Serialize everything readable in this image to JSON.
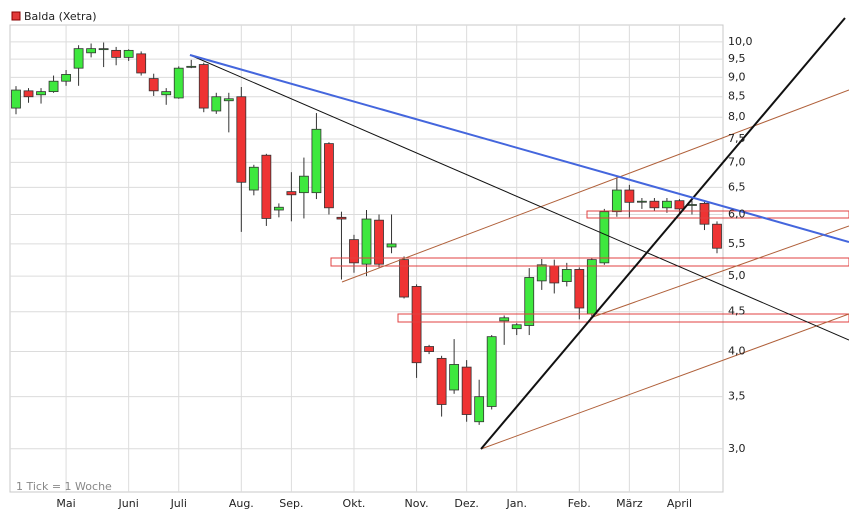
{
  "chart_data": {
    "type": "candlestick",
    "title": "Balda (Xetra)",
    "footnote": "1 Tick = 1 Woche",
    "log_scale": true,
    "grid": true,
    "categories": [
      null,
      null,
      null,
      null,
      "Mai",
      null,
      null,
      null,
      null,
      "Juni",
      null,
      null,
      null,
      "Juli",
      null,
      null,
      null,
      null,
      "Aug.",
      null,
      null,
      null,
      "Sep.",
      null,
      null,
      null,
      null,
      "Okt.",
      null,
      null,
      null,
      null,
      "Nov.",
      null,
      null,
      null,
      "Dez.",
      null,
      null,
      null,
      "Jan.",
      null,
      null,
      null,
      null,
      "Feb.",
      null,
      null,
      null,
      "März",
      null,
      null,
      null,
      "April",
      null,
      null,
      null
    ],
    "series": [
      {
        "name": "Balda (Xetra)",
        "color": "#e23a3a",
        "up_color": "#3ee83e",
        "down_color": "#ee3333",
        "open": [
          8.22,
          8.65,
          8.55,
          8.63,
          8.9,
          9.25,
          9.68,
          9.8,
          9.75,
          9.55,
          9.65,
          8.97,
          8.55,
          8.47,
          9.3,
          9.35,
          8.15,
          8.4,
          8.5,
          6.45,
          7.15,
          6.08,
          6.42,
          6.4,
          6.4,
          7.4,
          5.95,
          5.57,
          5.18,
          5.9,
          5.45,
          5.25,
          4.85,
          4.06,
          3.92,
          3.57,
          3.82,
          3.25,
          3.4,
          4.38,
          4.28,
          4.32,
          4.93,
          5.15,
          4.92,
          5.1,
          4.47,
          5.2,
          6.05,
          6.45,
          6.24,
          6.24,
          6.12,
          6.25,
          6.18,
          6.2,
          5.83
        ],
        "high": [
          8.77,
          8.72,
          8.72,
          9.05,
          9.2,
          9.9,
          9.95,
          9.98,
          9.85,
          9.78,
          9.72,
          9.1,
          8.72,
          9.3,
          9.48,
          9.4,
          8.6,
          8.6,
          8.75,
          6.95,
          7.18,
          6.2,
          6.8,
          7.1,
          8.1,
          7.43,
          6.05,
          5.65,
          6.08,
          6.0,
          6.0,
          5.3,
          4.88,
          4.08,
          3.95,
          4.15,
          3.9,
          3.68,
          4.2,
          4.45,
          4.35,
          5.12,
          5.26,
          5.25,
          5.2,
          5.13,
          5.28,
          6.1,
          6.7,
          6.55,
          6.3,
          6.3,
          6.3,
          6.28,
          6.25,
          6.23,
          5.88
        ],
        "low": [
          8.07,
          8.35,
          8.33,
          8.6,
          8.78,
          8.78,
          9.55,
          9.28,
          9.33,
          9.45,
          9.05,
          8.52,
          8.3,
          8.45,
          9.25,
          8.12,
          8.08,
          7.65,
          5.7,
          6.35,
          5.8,
          5.95,
          5.88,
          5.93,
          6.28,
          6.0,
          4.95,
          5.05,
          5.0,
          5.13,
          5.35,
          4.68,
          3.7,
          3.97,
          3.3,
          3.53,
          3.25,
          3.22,
          3.37,
          4.08,
          4.2,
          4.2,
          4.8,
          4.75,
          4.85,
          4.4,
          4.43,
          5.17,
          5.96,
          5.95,
          6.1,
          6.07,
          6.03,
          6.03,
          6.0,
          5.73,
          5.35
        ],
        "close": [
          8.67,
          8.5,
          8.63,
          8.9,
          9.08,
          9.8,
          9.8,
          9.8,
          9.55,
          9.75,
          9.12,
          8.65,
          8.63,
          9.25,
          9.3,
          8.22,
          8.5,
          8.45,
          6.6,
          6.9,
          5.93,
          6.13,
          6.36,
          6.72,
          7.72,
          6.12,
          5.92,
          5.2,
          5.92,
          5.18,
          5.5,
          4.7,
          3.87,
          4.0,
          3.42,
          3.85,
          3.32,
          3.5,
          4.18,
          4.42,
          4.33,
          4.98,
          5.17,
          4.9,
          5.1,
          4.55,
          5.25,
          6.05,
          6.45,
          6.22,
          6.24,
          6.12,
          6.24,
          6.1,
          6.18,
          5.83,
          5.43
        ]
      }
    ],
    "ylim": [
      2.64,
      10.51
    ],
    "yticks": [
      {
        "value": 3,
        "label": "3,0"
      },
      {
        "value": 3.5,
        "label": "3,5"
      },
      {
        "value": 4,
        "label": "4,0"
      },
      {
        "value": 4.5,
        "label": "4,5"
      },
      {
        "value": 5,
        "label": "5,0"
      },
      {
        "value": 5.5,
        "label": "5,5"
      },
      {
        "value": 6,
        "label": "6,0"
      },
      {
        "value": 6.5,
        "label": "6,5"
      },
      {
        "value": 7,
        "label": "7,0"
      },
      {
        "value": 7.5,
        "label": "7,5"
      },
      {
        "value": 8,
        "label": "8,0"
      },
      {
        "value": 8.5,
        "label": "8,5"
      },
      {
        "value": 9,
        "label": "9,0"
      },
      {
        "value": 9.5,
        "label": "9,5"
      },
      {
        "value": 10,
        "label": "10,0"
      }
    ]
  }
}
